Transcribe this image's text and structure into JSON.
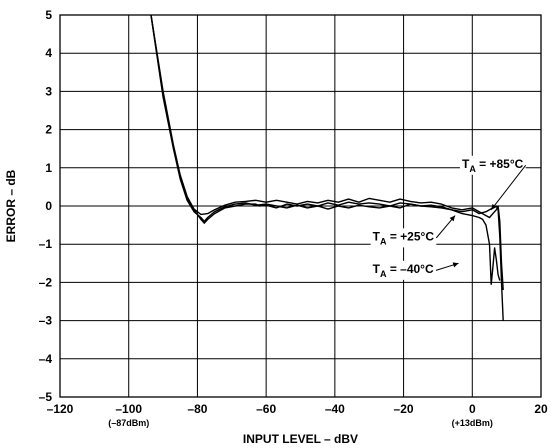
{
  "chart_data": {
    "type": "line",
    "xlabel": "INPUT LEVEL – dBV",
    "ylabel": "ERROR – dB",
    "xlim": [
      -120,
      20
    ],
    "ylim": [
      -5,
      5
    ],
    "x_ticks": [
      -120,
      -100,
      -80,
      -60,
      -40,
      -20,
      0,
      20
    ],
    "x_tick_labels": [
      "–120",
      "–100",
      "–80",
      "–60",
      "–40",
      "–20",
      "0",
      "20"
    ],
    "y_ticks": [
      -5,
      -4,
      -3,
      -2,
      -1,
      0,
      1,
      2,
      3,
      4,
      5
    ],
    "y_tick_labels": [
      "–5",
      "–4",
      "–3",
      "–2",
      "–1",
      "0",
      "1",
      "2",
      "3",
      "4",
      "5"
    ],
    "x_sublabels": [
      {
        "x": -100,
        "text": "(–87dBm)"
      },
      {
        "x": 0,
        "text": "(+13dBm)"
      }
    ],
    "grid": true,
    "series": [
      {
        "name": "TA = +85°C",
        "x": [
          -93.5,
          -90,
          -87,
          -85,
          -83,
          -81,
          -79,
          -77,
          -75,
          -72,
          -69,
          -66,
          -63,
          -60,
          -57,
          -54,
          -51,
          -48,
          -45,
          -42,
          -39,
          -36,
          -33,
          -30,
          -27,
          -24,
          -21,
          -18,
          -15,
          -12,
          -9,
          -6,
          -3,
          0,
          2,
          4,
          5,
          6,
          7,
          7.5,
          8,
          8.5,
          9
        ],
        "y": [
          5,
          3.0,
          1.6,
          0.8,
          0.25,
          -0.08,
          -0.22,
          -0.2,
          -0.1,
          0.02,
          0.1,
          0.12,
          0.15,
          0.1,
          0.15,
          0.1,
          0.05,
          0.12,
          0.08,
          0.15,
          0.1,
          0.18,
          0.1,
          0.2,
          0.15,
          0.1,
          0.18,
          0.12,
          0.08,
          0.1,
          0.05,
          -0.05,
          -0.1,
          -0.05,
          -0.15,
          -0.25,
          -0.3,
          -0.2,
          -0.1,
          0.0,
          -0.4,
          -1.5,
          -2.2
        ]
      },
      {
        "name": "TA = +25°C",
        "x": [
          -93.5,
          -90,
          -87,
          -85,
          -83,
          -81,
          -79,
          -78,
          -77,
          -75,
          -72,
          -69,
          -66,
          -63,
          -62,
          -60,
          -57,
          -54,
          -51,
          -48,
          -45,
          -42,
          -39,
          -36,
          -33,
          -30,
          -27,
          -24,
          -21,
          -18,
          -15,
          -12,
          -9,
          -6,
          -3,
          0,
          2,
          4,
          5,
          6,
          7,
          7.5,
          8,
          8.5,
          9
        ],
        "y": [
          5,
          2.9,
          1.55,
          0.75,
          0.2,
          -0.1,
          -0.35,
          -0.45,
          -0.35,
          -0.2,
          -0.05,
          0.0,
          0.05,
          0.05,
          0.0,
          0.02,
          -0.05,
          0.05,
          0.0,
          0.05,
          0.0,
          0.08,
          0.02,
          0.1,
          0.05,
          0.08,
          0.05,
          0.0,
          0.08,
          0.05,
          0.0,
          0.02,
          -0.02,
          -0.1,
          -0.15,
          -0.1,
          -0.2,
          -0.15,
          -0.1,
          -0.05,
          0.0,
          -0.1,
          -0.8,
          -2.0,
          -3.0
        ]
      },
      {
        "name": "TA = –40°C",
        "x": [
          -93.5,
          -90,
          -87,
          -85,
          -83,
          -81,
          -79,
          -78,
          -77,
          -75,
          -72,
          -69,
          -66,
          -63,
          -60,
          -57,
          -54,
          -51,
          -48,
          -45,
          -42,
          -39,
          -36,
          -33,
          -30,
          -27,
          -24,
          -21,
          -18,
          -15,
          -12,
          -9,
          -6,
          -3,
          0,
          2,
          3,
          4,
          5,
          5.5,
          6,
          6.5,
          7,
          7.5,
          8
        ],
        "y": [
          5,
          2.85,
          1.5,
          0.7,
          0.15,
          -0.15,
          -0.3,
          -0.4,
          -0.3,
          -0.15,
          -0.02,
          0.05,
          0.08,
          0.02,
          0.05,
          0.0,
          -0.05,
          0.02,
          -0.05,
          0.0,
          -0.08,
          0.0,
          -0.05,
          0.02,
          -0.02,
          -0.05,
          0.0,
          -0.05,
          0.05,
          0.0,
          -0.02,
          -0.05,
          -0.1,
          -0.2,
          -0.25,
          -0.3,
          -0.35,
          -0.5,
          -1.0,
          -2.05,
          -1.6,
          -1.1,
          -1.4,
          -1.8,
          -1.95
        ]
      }
    ],
    "annotations": [
      {
        "label": "T",
        "sub": "A",
        "rest": " = +85°C",
        "text_x": -3,
        "text_y": 1.0,
        "arrow_to": [
          5.5,
          -0.1
        ]
      },
      {
        "label": "T",
        "sub": "A",
        "rest": " = +25°C",
        "text_x": -29,
        "text_y": -0.9,
        "arrow_to": [
          -5,
          -0.25
        ]
      },
      {
        "label": "T",
        "sub": "A",
        "rest": " = –40°C",
        "text_x": -29,
        "text_y": -1.75,
        "arrow_to": [
          -4,
          -1.5
        ]
      }
    ]
  }
}
